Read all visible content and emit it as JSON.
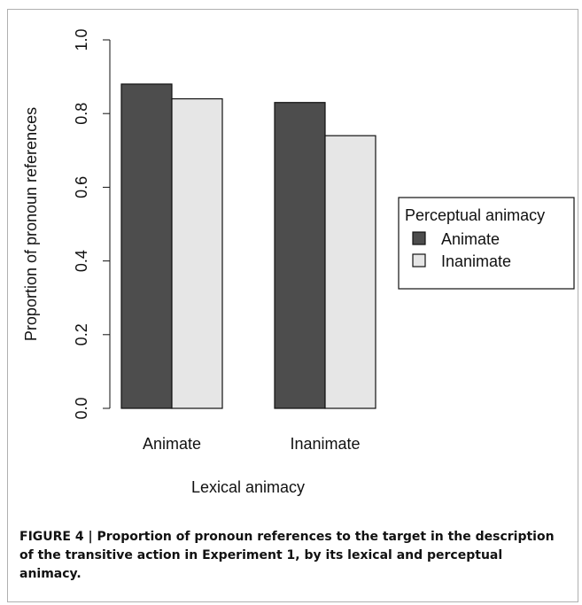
{
  "chart_data": {
    "type": "bar",
    "categories": [
      "Animate",
      "Inanimate"
    ],
    "series": [
      {
        "name": "Animate",
        "values": [
          0.88,
          0.83
        ]
      },
      {
        "name": "Inanimate",
        "values": [
          0.84,
          0.74
        ]
      }
    ],
    "xlabel": "Lexical animacy",
    "ylabel": "Proportion of pronoun references",
    "ylim": [
      0,
      1.0
    ],
    "yticks": [
      "0.0",
      "0.2",
      "0.4",
      "0.6",
      "0.8",
      "1.0"
    ],
    "grid": false,
    "legend": {
      "title": "Perceptual animacy",
      "placement": "right",
      "entries": [
        "Animate",
        "Inanimate"
      ]
    }
  },
  "colors": {
    "animate": "#4d4d4d",
    "inanimate": "#e6e6e6"
  },
  "caption": "FIGURE 4 | Proportion of pronoun references to the target in the description of the transitive action in Experiment 1, by its lexical and perceptual animacy."
}
